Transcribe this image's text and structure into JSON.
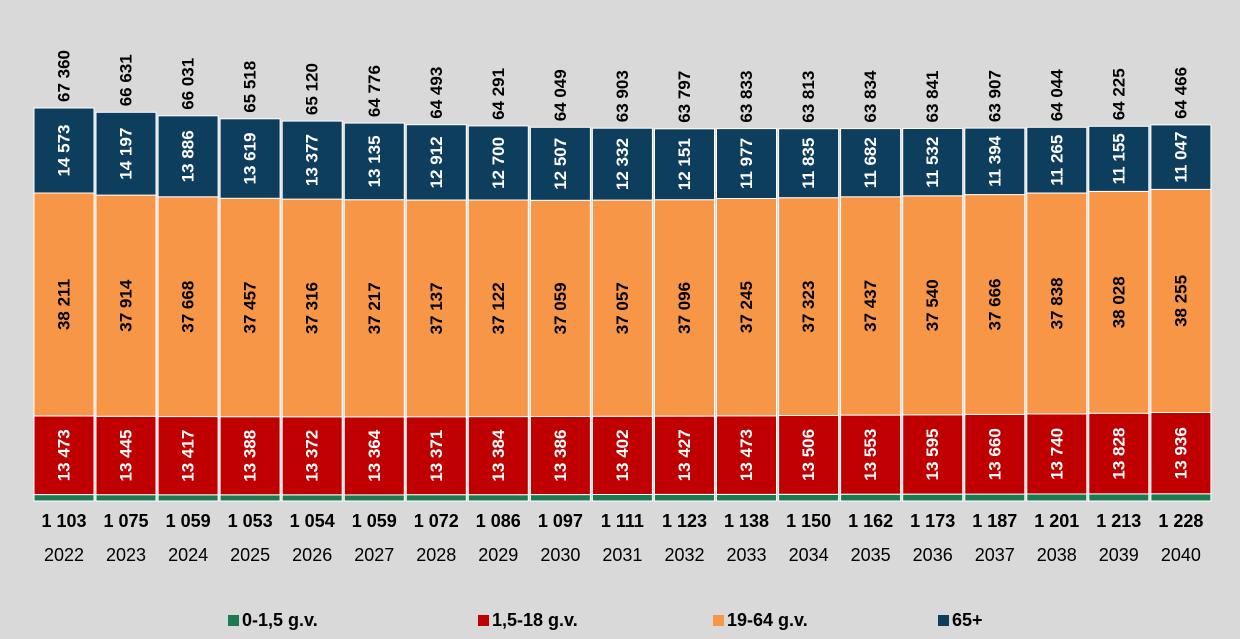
{
  "chart_data": {
    "type": "bar",
    "stacked": true,
    "categories": [
      "2022",
      "2023",
      "2024",
      "2025",
      "2026",
      "2027",
      "2028",
      "2029",
      "2030",
      "2031",
      "2032",
      "2033",
      "2034",
      "2035",
      "2036",
      "2037",
      "2038",
      "2039",
      "2040"
    ],
    "series": [
      {
        "name": "0-1,5 g.v.",
        "color": "#1b7a4f",
        "values": [
          1103,
          1075,
          1059,
          1053,
          1054,
          1059,
          1072,
          1086,
          1097,
          1111,
          1123,
          1138,
          1150,
          1162,
          1173,
          1187,
          1201,
          1213,
          1228
        ],
        "labels": [
          "1 103",
          "1 075",
          "1 059",
          "1 053",
          "1 054",
          "1 059",
          "1 072",
          "1 086",
          "1 097",
          "1 111",
          "1 123",
          "1 138",
          "1 150",
          "1 162",
          "1 173",
          "1 187",
          "1 201",
          "1 213",
          "1 228"
        ]
      },
      {
        "name": "1,5-18 g.v.",
        "color": "#c00000",
        "values": [
          13473,
          13445,
          13417,
          13388,
          13372,
          13364,
          13371,
          13384,
          13386,
          13402,
          13427,
          13473,
          13506,
          13553,
          13595,
          13660,
          13740,
          13828,
          13936
        ],
        "labels": [
          "13 473",
          "13 445",
          "13 417",
          "13 388",
          "13 372",
          "13 364",
          "13 371",
          "13 384",
          "13 386",
          "13 402",
          "13 427",
          "13 473",
          "13 506",
          "13 553",
          "13 595",
          "13 660",
          "13 740",
          "13 828",
          "13 936"
        ]
      },
      {
        "name": "19-64 g.v.",
        "color": "#f79646",
        "values": [
          38211,
          37914,
          37668,
          37457,
          37316,
          37217,
          37137,
          37122,
          37059,
          37057,
          37096,
          37245,
          37323,
          37437,
          37540,
          37666,
          37838,
          38028,
          38255
        ],
        "labels": [
          "38 211",
          "37 914",
          "37 668",
          "37 457",
          "37 316",
          "37 217",
          "37 137",
          "37 122",
          "37 059",
          "37 057",
          "37 096",
          "37 245",
          "37 323",
          "37 437",
          "37 540",
          "37 666",
          "37 838",
          "38 028",
          "38 255"
        ]
      },
      {
        "name": "65+",
        "color": "#0e3e5e",
        "values": [
          14573,
          14197,
          13886,
          13619,
          13377,
          13135,
          12912,
          12700,
          12507,
          12332,
          12151,
          11977,
          11835,
          11682,
          11532,
          11394,
          11265,
          11155,
          11047
        ],
        "labels": [
          "14 573",
          "14 197",
          "13 886",
          "13 619",
          "13 377",
          "13 135",
          "12 912",
          "12 700",
          "12 507",
          "12 332",
          "12 151",
          "11 977",
          "11 835",
          "11 682",
          "11 532",
          "11 394",
          "11 265",
          "11 155",
          "11 047"
        ]
      }
    ],
    "totals": [
      67360,
      66631,
      66031,
      65518,
      65120,
      64776,
      64493,
      64291,
      64049,
      63903,
      63797,
      63833,
      63813,
      63834,
      63841,
      63907,
      64044,
      64225,
      64466
    ],
    "total_labels": [
      "67 360",
      "66 631",
      "66 031",
      "65 518",
      "65 120",
      "64 776",
      "64 493",
      "64 291",
      "64 049",
      "63 903",
      "63 797",
      "63 833",
      "63 813",
      "63 834",
      "63 841",
      "63 907",
      "64 044",
      "64 225",
      "64 466"
    ],
    "ylim": [
      0,
      73000
    ],
    "grid": false,
    "legend_position": "bottom",
    "title": "",
    "xlabel": "",
    "ylabel": ""
  }
}
